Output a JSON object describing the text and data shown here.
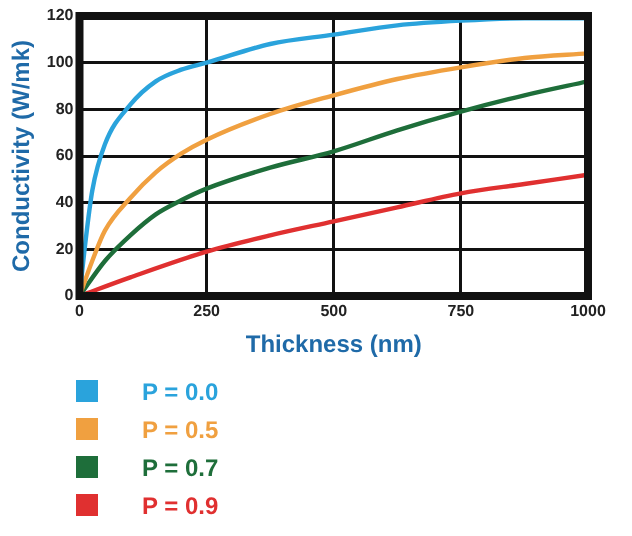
{
  "chart_data": {
    "type": "line",
    "xlabel": "Thickness (nm)",
    "ylabel": "Conductivity (W/mk)",
    "xlim": [
      0,
      1000
    ],
    "xticks": [
      0,
      250,
      500,
      750,
      1000
    ],
    "ylim": [
      0,
      120
    ],
    "yticks": [
      0,
      20,
      40,
      60,
      80,
      100,
      120
    ],
    "grid": true,
    "legend": "bottom",
    "marker": "none",
    "line_style": "solid",
    "series": [
      {
        "name": "P = 0.0",
        "color": "#2aa3dc",
        "x": [
          0,
          10,
          25,
          50,
          100,
          150,
          200,
          250,
          375,
          500,
          625,
          750,
          875,
          1000
        ],
        "values": [
          0,
          20,
          45,
          65,
          82,
          92,
          97,
          100,
          108,
          112,
          116,
          118,
          119,
          119
        ]
      },
      {
        "name": "P = 0.5",
        "color": "#f0a040",
        "x": [
          0,
          25,
          50,
          100,
          150,
          200,
          250,
          375,
          500,
          625,
          750,
          875,
          1000
        ],
        "values": [
          0,
          15,
          28,
          42,
          53,
          61,
          67,
          78,
          86,
          93,
          98,
          102,
          104
        ]
      },
      {
        "name": "P = 0.7",
        "color": "#1e6e3a",
        "x": [
          0,
          50,
          100,
          150,
          200,
          250,
          375,
          500,
          625,
          750,
          875,
          1000
        ],
        "values": [
          0,
          15,
          26,
          35,
          41,
          46,
          55,
          62,
          71,
          79,
          86,
          92
        ]
      },
      {
        "name": "P = 0.9",
        "color": "#e03030",
        "x": [
          0,
          100,
          250,
          375,
          500,
          625,
          750,
          875,
          1000
        ],
        "values": [
          0,
          8,
          19,
          26,
          32,
          38,
          44,
          48,
          52
        ]
      }
    ]
  }
}
